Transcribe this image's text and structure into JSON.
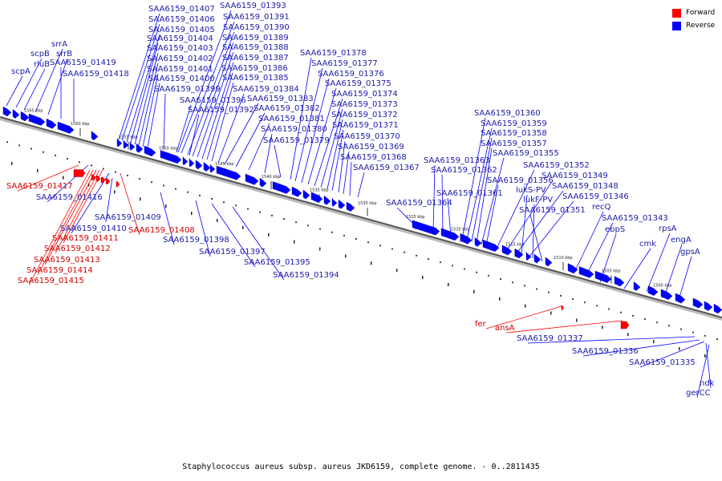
{
  "legend": [
    {
      "label": "Forward",
      "color": "#ff0000"
    },
    {
      "label": "Reverse",
      "color": "#0000ff"
    }
  ],
  "caption": "Staphylococcus aureus subsp. aureus JKD6159, complete genome. - 0..2811435",
  "axis_ticks": [
    "1565 kbp",
    "1560 kbp",
    "1555 kbp",
    "1550 kbp",
    "1545 kbp",
    "1540 kbp",
    "1535 kbp",
    "1530 kbp",
    "1525 kbp",
    "1520 kbp",
    "1515 kbp",
    "1510 kbp",
    "1505 kbp",
    "1500 kbp"
  ],
  "labels": [
    {
      "text": "scpA",
      "strand": "reverse"
    },
    {
      "text": "scpB",
      "strand": "reverse"
    },
    {
      "text": "rluB",
      "strand": "reverse"
    },
    {
      "text": "srrA",
      "strand": "reverse"
    },
    {
      "text": "srrB",
      "strand": "reverse"
    },
    {
      "text": "SAA6159_01419",
      "strand": "reverse"
    },
    {
      "text": "SAA6159_01418",
      "strand": "reverse"
    },
    {
      "text": "SAA6159_01407",
      "strand": "reverse"
    },
    {
      "text": "SAA6159_01406",
      "strand": "reverse"
    },
    {
      "text": "SAA6159_01405",
      "strand": "reverse"
    },
    {
      "text": "SAA6159_01404",
      "strand": "reverse"
    },
    {
      "text": "SAA6159_01403",
      "strand": "reverse"
    },
    {
      "text": "SAA6159_01402",
      "strand": "reverse"
    },
    {
      "text": "SAA6159_01401",
      "strand": "reverse"
    },
    {
      "text": "SAA6159_01400",
      "strand": "reverse"
    },
    {
      "text": "SAA6159_01399",
      "strand": "reverse"
    },
    {
      "text": "SAA6159_01396",
      "strand": "reverse"
    },
    {
      "text": "SAA6159_01392",
      "strand": "reverse"
    },
    {
      "text": "SAA6159_01393",
      "strand": "reverse"
    },
    {
      "text": "SAA6159_01391",
      "strand": "reverse"
    },
    {
      "text": "SAA6159_01390",
      "strand": "reverse"
    },
    {
      "text": "SAA6159_01389",
      "strand": "reverse"
    },
    {
      "text": "SAA6159_01388",
      "strand": "reverse"
    },
    {
      "text": "SAA6159_01387",
      "strand": "reverse"
    },
    {
      "text": "SAA6159_01386",
      "strand": "reverse"
    },
    {
      "text": "SAA6159_01385",
      "strand": "reverse"
    },
    {
      "text": "SAA6159_01384",
      "strand": "reverse"
    },
    {
      "text": "SAA6159_01383",
      "strand": "reverse"
    },
    {
      "text": "SAA6159_01382",
      "strand": "reverse"
    },
    {
      "text": "SAA6159_01381",
      "strand": "reverse"
    },
    {
      "text": "SAA6159_01380",
      "strand": "reverse"
    },
    {
      "text": "SAA6159_01379",
      "strand": "reverse"
    },
    {
      "text": "SAA6159_01378",
      "strand": "reverse"
    },
    {
      "text": "SAA6159_01377",
      "strand": "reverse"
    },
    {
      "text": "SAA6159_01376",
      "strand": "reverse"
    },
    {
      "text": "SAA6159_01375",
      "strand": "reverse"
    },
    {
      "text": "SAA6159_01374",
      "strand": "reverse"
    },
    {
      "text": "SAA6159_01373",
      "strand": "reverse"
    },
    {
      "text": "SAA6159_01372",
      "strand": "reverse"
    },
    {
      "text": "SAA6159_01371",
      "strand": "reverse"
    },
    {
      "text": "SAA6159_01370",
      "strand": "reverse"
    },
    {
      "text": "SAA6159_01369",
      "strand": "reverse"
    },
    {
      "text": "SAA6159_01368",
      "strand": "reverse"
    },
    {
      "text": "SAA6159_01367",
      "strand": "reverse"
    },
    {
      "text": "SAA6159_01364",
      "strand": "reverse"
    },
    {
      "text": "SAA6159_01363",
      "strand": "reverse"
    },
    {
      "text": "SAA6159_01362",
      "strand": "reverse"
    },
    {
      "text": "SAA6159_01361",
      "strand": "reverse"
    },
    {
      "text": "SAA6159_01360",
      "strand": "reverse"
    },
    {
      "text": "SAA6159_01359",
      "strand": "reverse"
    },
    {
      "text": "SAA6159_01358",
      "strand": "reverse"
    },
    {
      "text": "SAA6159_01357",
      "strand": "reverse"
    },
    {
      "text": "SAA6159_01355",
      "strand": "reverse"
    },
    {
      "text": "SAA6159_01356",
      "strand": "reverse"
    },
    {
      "text": "SAA6159_01352",
      "strand": "reverse"
    },
    {
      "text": "SAA6159_01349",
      "strand": "reverse"
    },
    {
      "text": "SAA6159_01348",
      "strand": "reverse"
    },
    {
      "text": "SAA6159_01346",
      "strand": "reverse"
    },
    {
      "text": "lukS-PV",
      "strand": "reverse"
    },
    {
      "text": "lukF-PV",
      "strand": "reverse"
    },
    {
      "text": "SAA6159_01351",
      "strand": "reverse"
    },
    {
      "text": "recQ",
      "strand": "reverse"
    },
    {
      "text": "SAA6159_01343",
      "strand": "reverse"
    },
    {
      "text": "ebpS",
      "strand": "reverse"
    },
    {
      "text": "cmk",
      "strand": "reverse"
    },
    {
      "text": "rpsA",
      "strand": "reverse"
    },
    {
      "text": "engA",
      "strand": "reverse"
    },
    {
      "text": "gpsA",
      "strand": "reverse"
    },
    {
      "text": "SAA6159_01417",
      "strand": "forward"
    },
    {
      "text": "SAA6159_01416",
      "strand": "reverse"
    },
    {
      "text": "SAA6159_01409",
      "strand": "reverse"
    },
    {
      "text": "SAA6159_01410",
      "strand": "reverse"
    },
    {
      "text": "SAA6159_01408",
      "strand": "forward"
    },
    {
      "text": "SAA6159_01411",
      "strand": "forward"
    },
    {
      "text": "SAA6159_01412",
      "strand": "forward"
    },
    {
      "text": "SAA6159_01413",
      "strand": "forward"
    },
    {
      "text": "SAA6159_01414",
      "strand": "forward"
    },
    {
      "text": "SAA6159_01415",
      "strand": "forward"
    },
    {
      "text": "SAA6159_01398",
      "strand": "reverse"
    },
    {
      "text": "SAA6159_01397",
      "strand": "reverse"
    },
    {
      "text": "SAA6159_01395",
      "strand": "reverse"
    },
    {
      "text": "SAA6159_01394",
      "strand": "reverse"
    },
    {
      "text": "fer",
      "strand": "forward"
    },
    {
      "text": "ansA",
      "strand": "forward"
    },
    {
      "text": "SAA6159_01337",
      "strand": "reverse"
    },
    {
      "text": "SAA6159_01336",
      "strand": "reverse"
    },
    {
      "text": "SAA6159_01335",
      "strand": "reverse"
    },
    {
      "text": "ndk",
      "strand": "reverse"
    },
    {
      "text": "gerCC",
      "strand": "reverse"
    }
  ]
}
